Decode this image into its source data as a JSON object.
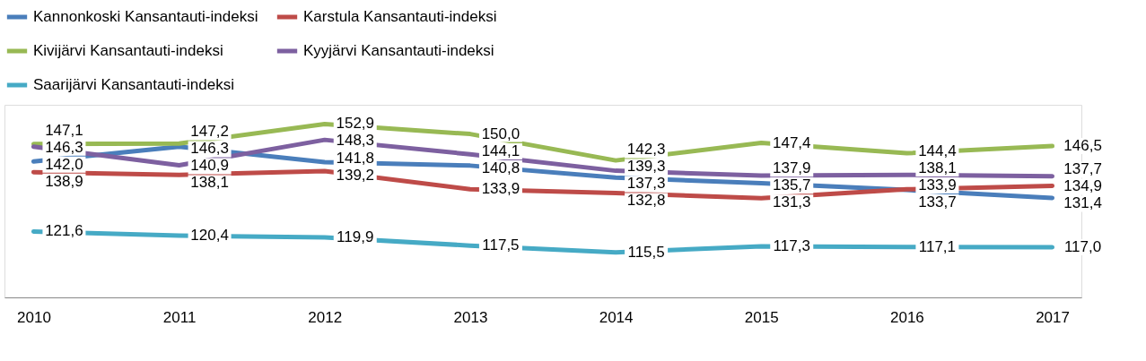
{
  "chart_data": {
    "type": "line",
    "categories": [
      "2010",
      "2011",
      "2012",
      "2013",
      "2014",
      "2015",
      "2016",
      "2017"
    ],
    "legend": "top",
    "grid": false,
    "marker": "none",
    "line_style": "solid",
    "tick_labels": "x",
    "series": [
      {
        "name": "Kannonkoski Kansantauti-indeksi",
        "color": "#4a7ebb",
        "values": [
          142.0,
          146.3,
          141.8,
          140.8,
          137.3,
          135.7,
          133.7,
          131.4
        ],
        "value_labels": [
          "142,0",
          "146,3",
          "141,8",
          "140,8",
          "137,3",
          "135,7",
          "133,7",
          "131,4"
        ]
      },
      {
        "name": "Karstula Kansantauti-indeksi",
        "color": "#be4b48",
        "values": [
          138.9,
          138.1,
          139.2,
          133.9,
          132.8,
          131.3,
          133.9,
          134.9
        ],
        "value_labels": [
          "138,9",
          "138,1",
          "139,2",
          "133,9",
          "132,8",
          "131,3",
          "133,9",
          "134,9"
        ]
      },
      {
        "name": "Kivijärvi Kansantauti-indeksi",
        "color": "#98b954",
        "values": [
          147.1,
          147.2,
          152.9,
          150.0,
          142.3,
          147.4,
          144.4,
          146.5
        ],
        "value_labels": [
          "147,1",
          "147,2",
          "152,9",
          "150,0",
          "142,3",
          "147,4",
          "144,4",
          "146,5"
        ]
      },
      {
        "name": "Kyyjärvi Kansantauti-indeksi",
        "color": "#7d60a0",
        "values": [
          146.3,
          140.9,
          148.3,
          144.1,
          139.3,
          137.9,
          138.1,
          137.7
        ],
        "value_labels": [
          "146,3",
          "140,9",
          "148,3",
          "144,1",
          "139,3",
          "137,9",
          "138,1",
          "137,7"
        ]
      },
      {
        "name": "Saarijärvi Kansantauti-indeksi",
        "color": "#46aac5",
        "values": [
          121.6,
          120.4,
          119.9,
          117.5,
          115.5,
          117.3,
          117.1,
          117.0
        ],
        "value_labels": [
          "121,6",
          "120,4",
          "119,9",
          "117,5",
          "115,5",
          "117,3",
          "117,1",
          "117,0"
        ]
      }
    ]
  }
}
